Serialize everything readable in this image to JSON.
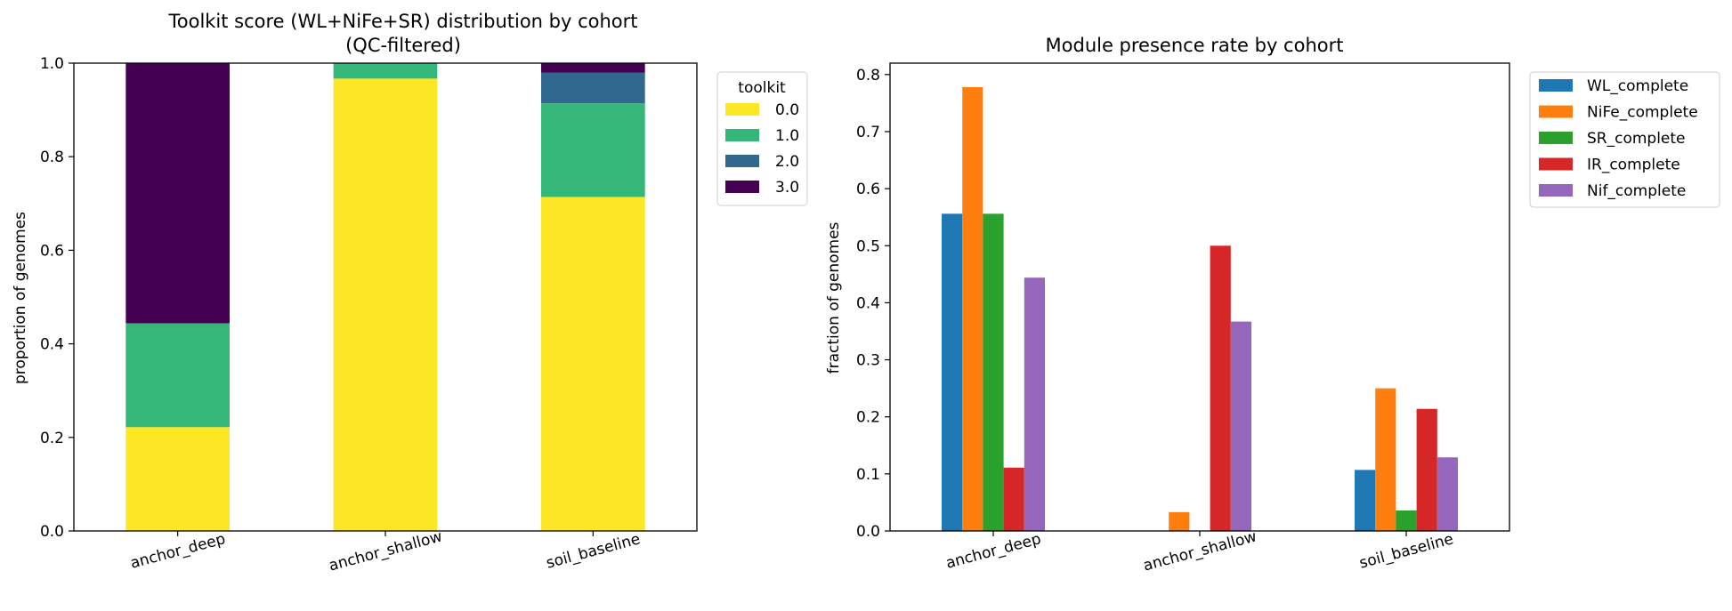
{
  "chart_data": [
    {
      "type": "bar",
      "stacked": true,
      "title": "Toolkit score (WL+NiFe+SR) distribution by cohort",
      "subtitle": "(QC-filtered)",
      "xlabel": "",
      "ylabel": "proportion of genomes",
      "ylim": [
        0,
        1.0
      ],
      "yticks": [
        "0.0",
        "0.2",
        "0.4",
        "0.6",
        "0.8",
        "1.0"
      ],
      "categories": [
        "anchor_deep",
        "anchor_shallow",
        "soil_baseline"
      ],
      "legend_title": "toolkit",
      "legend_position": "upper-right-outside",
      "grid": false,
      "series": [
        {
          "name": "0.0",
          "color": "#fde725",
          "values": [
            0.222,
            0.967,
            0.714
          ]
        },
        {
          "name": "1.0",
          "color": "#35b779",
          "values": [
            0.222,
            0.033,
            0.2
          ]
        },
        {
          "name": "2.0",
          "color": "#31688e",
          "values": [
            0.0,
            0.0,
            0.066
          ]
        },
        {
          "name": "3.0",
          "color": "#440154",
          "values": [
            0.556,
            0.0,
            0.02
          ]
        }
      ]
    },
    {
      "type": "bar",
      "title": "Module presence rate by cohort",
      "xlabel": "",
      "ylabel": "fraction of genomes",
      "ylim": [
        0,
        0.82
      ],
      "yticks": [
        "0.0",
        "0.1",
        "0.2",
        "0.3",
        "0.4",
        "0.5",
        "0.6",
        "0.7",
        "0.8"
      ],
      "categories": [
        "anchor_deep",
        "anchor_shallow",
        "soil_baseline"
      ],
      "legend_position": "upper-right-outside",
      "grid": false,
      "series": [
        {
          "name": "WL_complete",
          "color": "#1f77b4",
          "values": [
            0.556,
            0.0,
            0.107
          ]
        },
        {
          "name": "NiFe_complete",
          "color": "#ff7f0e",
          "values": [
            0.778,
            0.033,
            0.25
          ]
        },
        {
          "name": "SR_complete",
          "color": "#2ca02c",
          "values": [
            0.556,
            0.0,
            0.036
          ]
        },
        {
          "name": "IR_complete",
          "color": "#d62728",
          "values": [
            0.111,
            0.5,
            0.214
          ]
        },
        {
          "name": "Nif_complete",
          "color": "#9467bd",
          "values": [
            0.444,
            0.367,
            0.129
          ]
        }
      ]
    }
  ]
}
